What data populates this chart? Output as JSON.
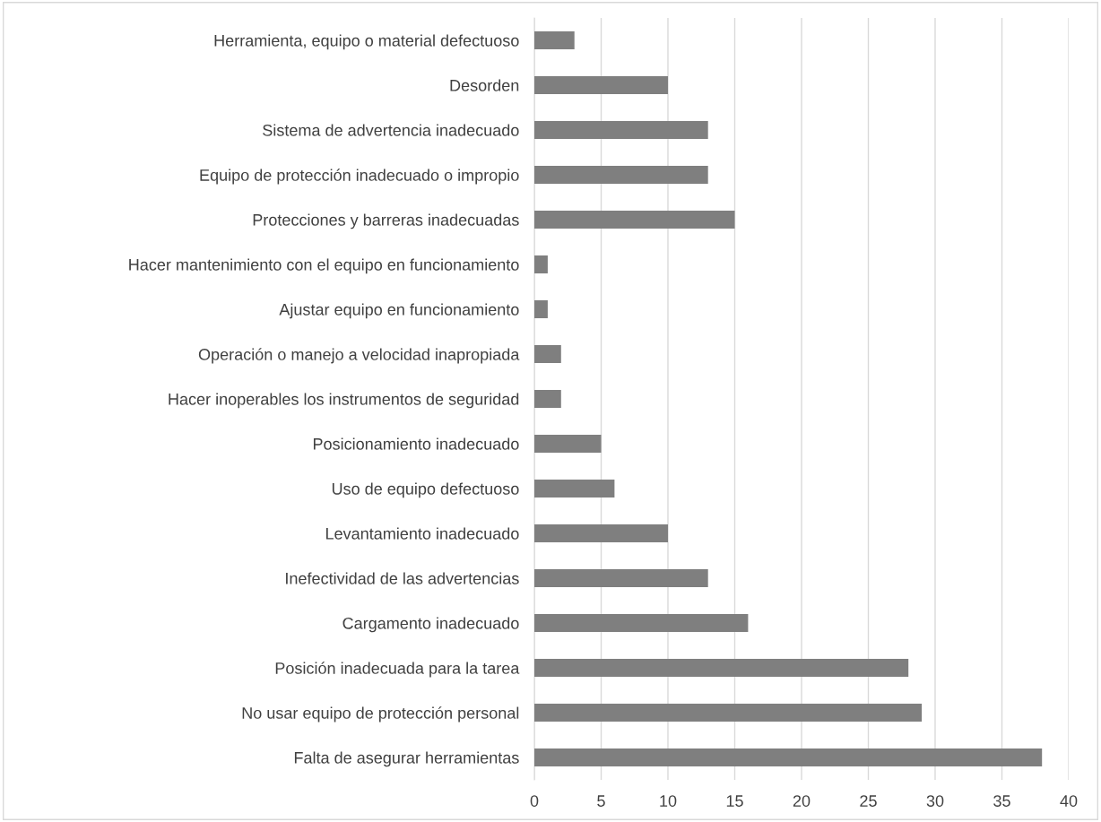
{
  "chart_data": {
    "type": "bar",
    "orientation": "horizontal",
    "categories": [
      "Herramienta, equipo o material defectuoso",
      "Desorden",
      "Sistema de advertencia inadecuado",
      "Equipo de protección inadecuado o impropio",
      "Protecciones y barreras inadecuadas",
      "Hacer mantenimiento con el equipo en funcionamiento",
      "Ajustar equipo en funcionamiento",
      "Operación o manejo a velocidad inapropiada",
      "Hacer inoperables los instrumentos de seguridad",
      "Posicionamiento inadecuado",
      "Uso de equipo defectuoso",
      "Levantamiento inadecuado",
      "Inefectividad de las advertencias",
      "Cargamento inadecuado",
      "Posición inadecuada para la tarea",
      "No usar equipo de protección personal",
      "Falta de asegurar herramientas"
    ],
    "values": [
      3,
      10,
      13,
      13,
      15,
      1,
      1,
      2,
      2,
      5,
      6,
      10,
      13,
      16,
      28,
      29,
      38
    ],
    "color": "#7f7f7f",
    "xlim": [
      0,
      40
    ],
    "xticks": [
      0,
      5,
      10,
      15,
      20,
      25,
      30,
      35,
      40
    ],
    "grid": "x"
  }
}
